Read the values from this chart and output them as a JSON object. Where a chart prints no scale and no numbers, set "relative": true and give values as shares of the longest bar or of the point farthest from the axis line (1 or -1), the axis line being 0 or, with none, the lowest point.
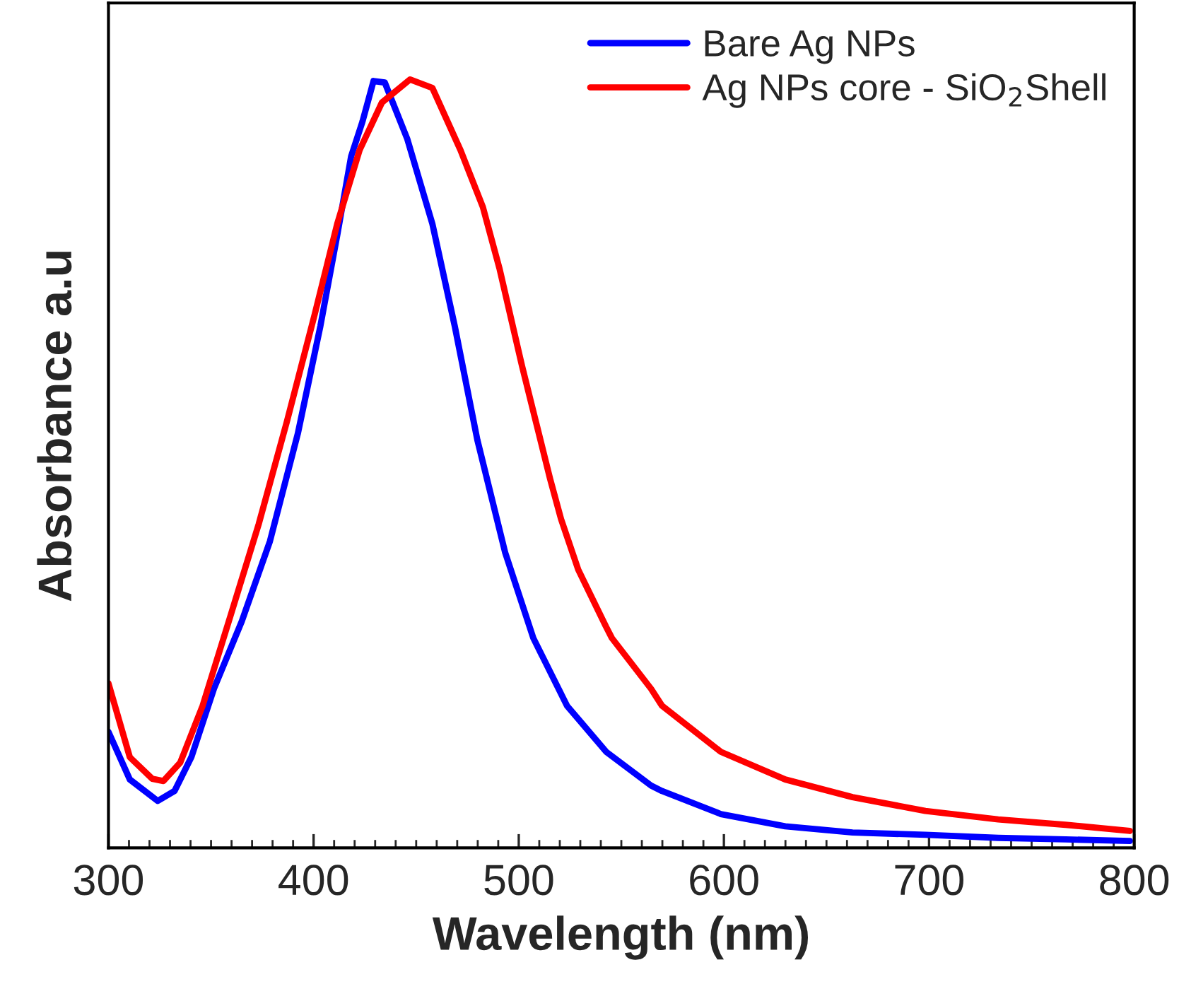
{
  "chart_data": {
    "type": "line",
    "xlabel": "Wavelength (nm)",
    "ylabel": "Absorbance a.u",
    "relative": true,
    "xlim": [
      300,
      800
    ],
    "xticks": [
      300,
      400,
      500,
      600,
      700,
      800
    ],
    "tick_labels": "x",
    "legend": "top right",
    "grid": false,
    "line_style": "solid",
    "marker": "none",
    "series": [
      {
        "name": "Bare Ag NPs",
        "color": "#0000ff",
        "x": [
          300,
          310.4,
          324,
          332.2,
          340.4,
          351.4,
          365,
          378.7,
          392.3,
          403.3,
          411.5,
          418.3,
          423.8,
          429.2,
          434.7,
          445.6,
          457.9,
          468.8,
          479.8,
          493.4,
          507.1,
          523.5,
          542.6,
          564.5,
          569.8,
          598.5,
          629.9,
          662.7,
          698.2,
          733.7,
          766.5,
          797.9
        ],
        "values": [
          0.151,
          0.089,
          0.061,
          0.074,
          0.118,
          0.207,
          0.295,
          0.399,
          0.539,
          0.679,
          0.797,
          0.9,
          0.945,
          0.998,
          0.996,
          0.923,
          0.812,
          0.679,
          0.531,
          0.384,
          0.273,
          0.185,
          0.125,
          0.081,
          0.074,
          0.044,
          0.028,
          0.02,
          0.017,
          0.013,
          0.011,
          0.009
        ]
      },
      {
        "name": "Ag NPs core - SiO$_{2}$Shell",
        "color": "#ff0000",
        "x": [
          300,
          310.4,
          321.3,
          326.8,
          335,
          345.9,
          359.6,
          373.2,
          386.9,
          400.5,
          411.5,
          422.4,
          433.3,
          447,
          457.9,
          471.6,
          482.5,
          490.7,
          501.6,
          515.3,
          520.6,
          529,
          542.5,
          545.4,
          564.5,
          569.8,
          598.5,
          629.9,
          662.7,
          698.2,
          733.7,
          766.5,
          797.9
        ],
        "values": [
          0.214,
          0.118,
          0.09,
          0.087,
          0.111,
          0.185,
          0.303,
          0.421,
          0.554,
          0.694,
          0.812,
          0.908,
          0.97,
          1.0,
          0.989,
          0.908,
          0.834,
          0.753,
          0.627,
          0.48,
          0.428,
          0.362,
          0.288,
          0.273,
          0.207,
          0.185,
          0.125,
          0.089,
          0.066,
          0.048,
          0.037,
          0.03,
          0.022
        ]
      }
    ]
  }
}
